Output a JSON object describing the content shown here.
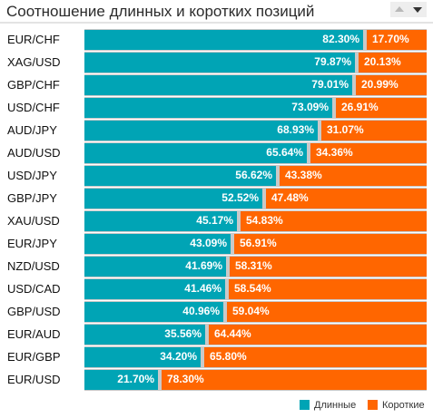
{
  "title": "Соотношение длинных и коротких позиций",
  "colors": {
    "long": "#00a4b5",
    "short": "#ff6600",
    "track": "#c9c9c9"
  },
  "chart_data": {
    "type": "bar",
    "orientation": "horizontal",
    "stacked": true,
    "categories": [
      "EUR/CHF",
      "XAG/USD",
      "GBP/CHF",
      "USD/CHF",
      "AUD/JPY",
      "AUD/USD",
      "USD/JPY",
      "GBP/JPY",
      "XAU/USD",
      "EUR/JPY",
      "NZD/USD",
      "USD/CAD",
      "GBP/USD",
      "EUR/AUD",
      "EUR/GBP",
      "EUR/USD"
    ],
    "series": [
      {
        "name": "Длинные",
        "color": "#00a4b5",
        "values": [
          82.3,
          79.87,
          79.01,
          73.09,
          68.93,
          65.64,
          56.62,
          52.52,
          45.17,
          43.09,
          41.69,
          41.46,
          40.96,
          35.56,
          34.2,
          21.7
        ]
      },
      {
        "name": "Короткие",
        "color": "#ff6600",
        "values": [
          17.7,
          20.13,
          20.99,
          26.91,
          31.07,
          34.36,
          43.38,
          47.48,
          54.83,
          56.91,
          58.31,
          58.54,
          59.04,
          64.44,
          65.8,
          78.3
        ]
      }
    ],
    "value_suffix": "%",
    "xlim": [
      0,
      100
    ],
    "grid": false,
    "legend": "bottom-right"
  }
}
